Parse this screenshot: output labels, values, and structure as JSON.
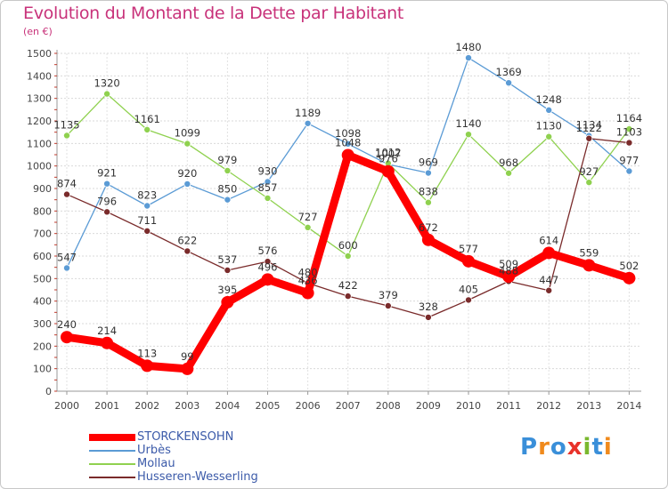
{
  "header": {
    "title": "Evolution du Montant de la Dette par Habitant",
    "unit": "(en €)"
  },
  "logo": {
    "text": "Proxiti",
    "letters": [
      "P",
      "r",
      "o",
      "x",
      "i",
      "t",
      "i"
    ],
    "colors": [
      "#3a8fd9",
      "#f08a1c",
      "#3a8fd9",
      "#e8322a",
      "#7ab82e",
      "#3a8fd9",
      "#f08a1c"
    ]
  },
  "chart_data": {
    "type": "line",
    "x": [
      "2000",
      "2001",
      "2002",
      "2003",
      "2004",
      "2005",
      "2006",
      "2007",
      "2008",
      "2009",
      "2010",
      "2011",
      "2012",
      "2013",
      "2014"
    ],
    "ylim": [
      0,
      1500
    ],
    "yticks": [
      0,
      100,
      200,
      300,
      400,
      500,
      600,
      700,
      800,
      900,
      1000,
      1100,
      1200,
      1300,
      1400,
      1500
    ],
    "grid": true,
    "legend_position": "bottom-left",
    "series": [
      {
        "name": "STORCKENSOHN",
        "color": "#ff0000",
        "values": [
          240,
          214,
          113,
          99,
          395,
          496,
          436,
          1048,
          976,
          672,
          577,
          509,
          614,
          559,
          502
        ]
      },
      {
        "name": "Urbès",
        "color": "#5b9bd5",
        "values": [
          547,
          921,
          823,
          920,
          850,
          930,
          1189,
          1098,
          1007,
          969,
          1480,
          1369,
          1248,
          1134,
          977
        ]
      },
      {
        "name": "Mollau",
        "color": "#8fd14f",
        "values": [
          1135,
          1320,
          1161,
          1099,
          979,
          857,
          727,
          600,
          1012,
          838,
          1140,
          968,
          1130,
          927,
          1164
        ]
      },
      {
        "name": "Husseren-Wesserling",
        "color": "#7a2b2b",
        "values": [
          874,
          796,
          711,
          622,
          537,
          576,
          480,
          422,
          379,
          328,
          405,
          488,
          447,
          1122,
          1103
        ]
      }
    ]
  }
}
